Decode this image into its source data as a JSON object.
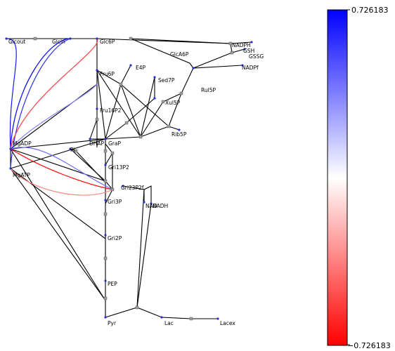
{
  "colorbar": {
    "max_label": "0.726183",
    "min_label": "−0.726183",
    "max_value": 0.726183,
    "min_value": -0.726183,
    "colors": {
      "high": "#0000ff",
      "mid": "#ffffff",
      "low": "#ff0000"
    }
  },
  "labels": {
    "glcout": "Glcout",
    "glcin": "Glcin",
    "glc6p": "Glc6P",
    "glca6p": "GlcA6P",
    "nadph": "NADPH",
    "nadp": "NADPf",
    "gsh": "GSH",
    "gssg": "GSSG",
    "e4p": "E4P",
    "fru6p": "Fru6P",
    "sed7p": "Sed7P",
    "rul5p": "Rul5P",
    "xul5p": "Xul5P",
    "fru16p2": "Fru16P2",
    "rib5p": "Rib5P",
    "dhap": "DHAP",
    "grap": "GraP",
    "mgadp": "MgADP",
    "pi": "Pi",
    "gri13p2": "Gri13P2",
    "mgatp": "MgATP",
    "gri23p2f": "Gri23P2f",
    "gri3p": "Gri3P",
    "nad": "NAD",
    "nadh": "NADH",
    "gri2p": "Gri2P",
    "pep": "PEP",
    "pyr": "Pyr",
    "lac": "Lac",
    "lacex": "Lacex"
  },
  "colored_edges": [
    {
      "from": "glcin",
      "to": "mgadp",
      "value": 0.72
    },
    {
      "from": "glcin",
      "to": "mgatp",
      "value": 0.6
    },
    {
      "from": "glcout",
      "to": "mgadp",
      "value": 0.66
    },
    {
      "from": "glc6p",
      "to": "mgadp",
      "value": -0.55
    },
    {
      "from": "fru6p",
      "to": "mgadp",
      "value": 0.35
    },
    {
      "from": "mgadp",
      "to": "gri23p2f",
      "value": -0.72
    },
    {
      "from": "mgatp",
      "to": "gri23p2f",
      "value": -0.35
    },
    {
      "from": "mgadp",
      "to": "gri23p2f",
      "value": 0.42
    }
  ]
}
